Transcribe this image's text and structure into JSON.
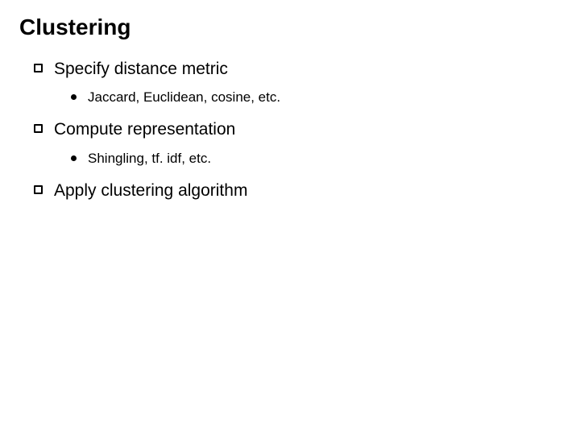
{
  "title": "Clustering",
  "items": [
    {
      "text": "Specify distance metric",
      "sub": [
        {
          "text": "Jaccard, Euclidean, cosine, etc."
        }
      ]
    },
    {
      "text": "Compute representation",
      "sub": [
        {
          "text": "Shingling, tf. idf, etc."
        }
      ]
    },
    {
      "text": "Apply clustering algorithm",
      "sub": []
    }
  ],
  "style": {
    "background_color": "#ffffff",
    "text_color": "#000000",
    "title_fontsize": 28,
    "level1_fontsize": 21,
    "level2_fontsize": 17,
    "hollow_bullet_size": 11,
    "dot_bullet_size": 7
  }
}
